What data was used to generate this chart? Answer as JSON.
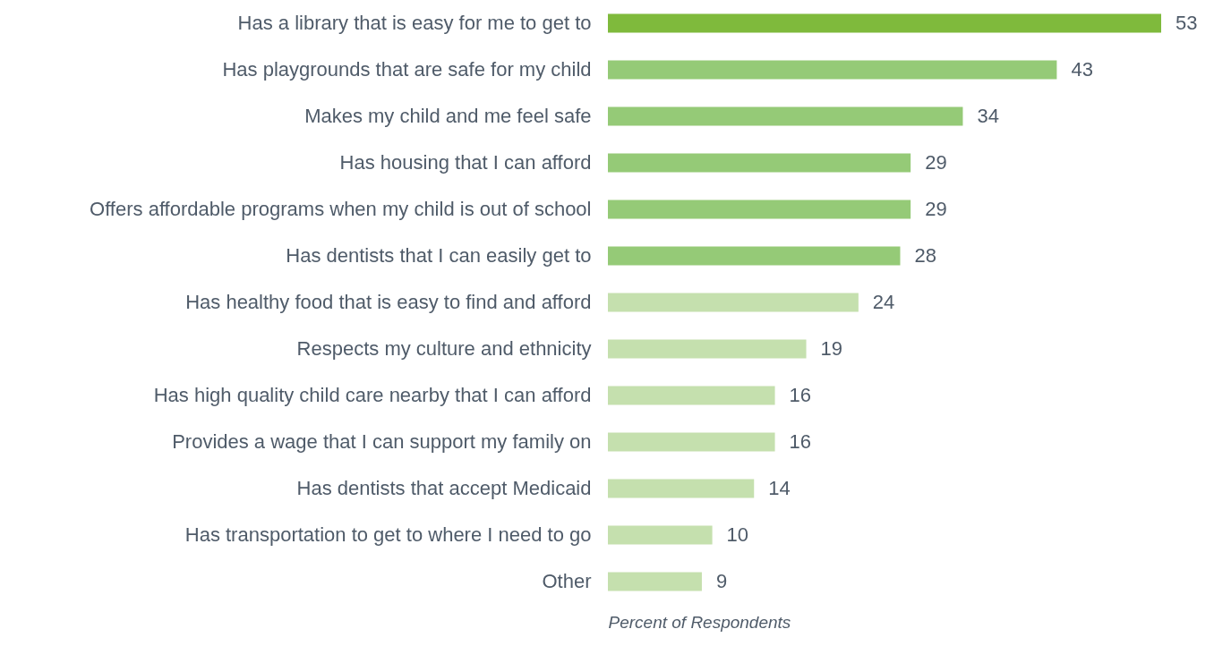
{
  "chart_data": {
    "type": "bar",
    "orientation": "horizontal",
    "xlabel": "Percent of Respondents",
    "data_labels": true,
    "tick_labels": "y",
    "categories": [
      "Has a library that is easy for me to get to",
      "Has playgrounds that are safe for my child",
      "Makes my child and me feel safe",
      "Has housing that I can afford",
      "Offers affordable programs when my child is out of school",
      "Has dentists that I can easily get to",
      "Has healthy food that is easy to find and afford",
      "Respects my culture and ethnicity",
      "Has high quality child care nearby that I can afford",
      "Provides a wage that I can support my family on",
      "Has dentists that accept Medicaid",
      "Has transportation to get to where I need to go",
      "Other"
    ],
    "values": [
      53,
      43,
      34,
      29,
      29,
      28,
      24,
      19,
      16,
      16,
      14,
      10,
      9
    ],
    "colors": [
      "#7fba3c",
      "#95ca77",
      "#95ca77",
      "#95ca77",
      "#95ca77",
      "#95ca77",
      "#c5e0ae",
      "#c5e0ae",
      "#c5e0ae",
      "#c5e0ae",
      "#c5e0ae",
      "#c5e0ae",
      "#c5e0ae"
    ]
  }
}
